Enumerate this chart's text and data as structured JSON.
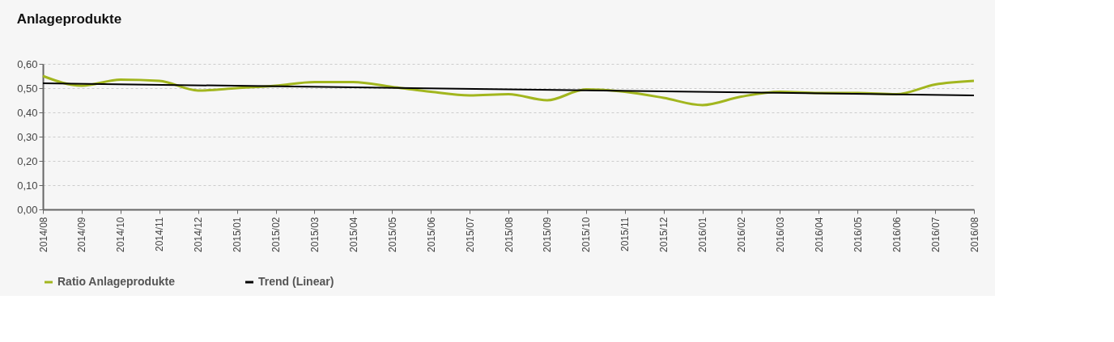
{
  "chart_data": {
    "type": "line",
    "title": "Anlageprodukte",
    "categories": [
      "2014/08",
      "2014/09",
      "2014/10",
      "2014/11",
      "2014/12",
      "2015/01",
      "2015/02",
      "2015/03",
      "2015/04",
      "2015/05",
      "2015/06",
      "2015/07",
      "2015/08",
      "2015/09",
      "2015/10",
      "2015/11",
      "2015/12",
      "2016/01",
      "2016/02",
      "2016/03",
      "2016/04",
      "2016/05",
      "2016/06",
      "2016/07",
      "2016/08"
    ],
    "series": [
      {
        "name": "Ratio Anlageprodukte",
        "color": "#a2b61e",
        "values": [
          0.55,
          0.51,
          0.535,
          0.53,
          0.49,
          0.5,
          0.51,
          0.525,
          0.525,
          0.505,
          0.485,
          0.47,
          0.475,
          0.45,
          0.495,
          0.485,
          0.46,
          0.43,
          0.465,
          0.485,
          0.48,
          0.48,
          0.475,
          0.515,
          0.53
        ]
      },
      {
        "name": "Trend (Linear)",
        "color": "#000000",
        "x": [
          "2014/08",
          "2016/08"
        ],
        "values": [
          0.52,
          0.47
        ]
      }
    ],
    "ylim": [
      0,
      0.6
    ],
    "yticks": [
      {
        "value": 0,
        "label": "0,00"
      },
      {
        "value": 0.1,
        "label": "0,10"
      },
      {
        "value": 0.2,
        "label": "0,20"
      },
      {
        "value": 0.3,
        "label": "0,30"
      },
      {
        "value": 0.4,
        "label": "0,40"
      },
      {
        "value": 0.5,
        "label": "0,50"
      },
      {
        "value": 0.6,
        "label": "0,60"
      }
    ],
    "grid": "y",
    "legend": "bottom left",
    "marker": "none",
    "line_style": "solid"
  }
}
